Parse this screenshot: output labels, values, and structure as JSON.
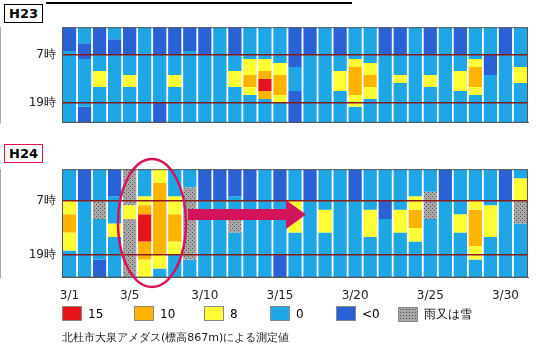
{
  "chart_data": [
    {
      "type": "heatmap",
      "title": "H23",
      "categories": [
        "3/1",
        null,
        null,
        null,
        "3/5",
        null,
        null,
        null,
        null,
        "3/10",
        null,
        null,
        null,
        null,
        "3/15",
        null,
        null,
        null,
        null,
        "3/20",
        null,
        null,
        null,
        null,
        "3/25",
        null,
        null,
        null,
        null,
        "3/30",
        null
      ],
      "ylim": [
        0,
        24
      ],
      "yticks": [
        {
          "value": 7,
          "label": "7時"
        },
        {
          "value": 19,
          "label": "19時"
        }
      ],
      "grid": true,
      "tick_labels": "y",
      "cells": [
        [
          [
            0,
            6,
            4
          ],
          [
            6,
            24,
            3
          ]
        ],
        [
          [
            0,
            4,
            3
          ],
          [
            4,
            8,
            4
          ],
          [
            8,
            20,
            3
          ],
          [
            20,
            24,
            4
          ]
        ],
        [
          [
            0,
            7,
            4
          ],
          [
            7,
            11,
            3
          ],
          [
            11,
            15,
            2
          ],
          [
            15,
            24,
            3
          ]
        ],
        [
          [
            0,
            3,
            3
          ],
          [
            3,
            7,
            4
          ],
          [
            7,
            24,
            3
          ]
        ],
        [
          [
            0,
            7,
            4
          ],
          [
            7,
            12,
            3
          ],
          [
            12,
            15,
            2
          ],
          [
            15,
            24,
            3
          ]
        ],
        [
          [
            0,
            24,
            3
          ]
        ],
        [
          [
            0,
            7,
            4
          ],
          [
            7,
            19,
            3
          ],
          [
            19,
            24,
            4
          ]
        ],
        [
          [
            0,
            7,
            4
          ],
          [
            7,
            12,
            3
          ],
          [
            12,
            15,
            2
          ],
          [
            15,
            24,
            3
          ]
        ],
        [
          [
            0,
            6,
            4
          ],
          [
            6,
            24,
            3
          ]
        ],
        [
          [
            0,
            7,
            4
          ],
          [
            7,
            24,
            3
          ]
        ],
        [
          [
            0,
            24,
            3
          ]
        ],
        [
          [
            0,
            7,
            4
          ],
          [
            7,
            11,
            3
          ],
          [
            11,
            15,
            2
          ],
          [
            15,
            24,
            3
          ]
        ],
        [
          [
            0,
            8,
            3
          ],
          [
            8,
            12,
            2
          ],
          [
            12,
            15,
            1
          ],
          [
            15,
            17,
            2
          ],
          [
            17,
            24,
            3
          ]
        ],
        [
          [
            0,
            8,
            3
          ],
          [
            8,
            11,
            2
          ],
          [
            11,
            13,
            1
          ],
          [
            13,
            16,
            0
          ],
          [
            16,
            18,
            1
          ],
          [
            18,
            24,
            3
          ]
        ],
        [
          [
            0,
            9,
            3
          ],
          [
            9,
            12,
            2
          ],
          [
            12,
            17,
            1
          ],
          [
            17,
            19,
            2
          ],
          [
            19,
            24,
            3
          ]
        ],
        [
          [
            0,
            10,
            4
          ],
          [
            10,
            16,
            3
          ],
          [
            16,
            24,
            4
          ]
        ],
        [
          [
            0,
            7,
            4
          ],
          [
            7,
            24,
            3
          ]
        ],
        [
          [
            0,
            24,
            3
          ]
        ],
        [
          [
            0,
            7,
            4
          ],
          [
            7,
            11,
            3
          ],
          [
            11,
            16,
            2
          ],
          [
            16,
            24,
            3
          ]
        ],
        [
          [
            0,
            8,
            3
          ],
          [
            8,
            10,
            2
          ],
          [
            10,
            17,
            1
          ],
          [
            17,
            20,
            2
          ],
          [
            20,
            24,
            3
          ]
        ],
        [
          [
            0,
            9,
            3
          ],
          [
            9,
            12,
            2
          ],
          [
            12,
            15,
            1
          ],
          [
            15,
            18,
            2
          ],
          [
            18,
            24,
            3
          ]
        ],
        [
          [
            0,
            7,
            4
          ],
          [
            7,
            24,
            3
          ]
        ],
        [
          [
            0,
            7,
            4
          ],
          [
            7,
            12,
            3
          ],
          [
            12,
            14,
            2
          ],
          [
            14,
            24,
            3
          ]
        ],
        [
          [
            0,
            24,
            3
          ]
        ],
        [
          [
            0,
            7,
            4
          ],
          [
            7,
            12,
            3
          ],
          [
            12,
            15,
            2
          ],
          [
            15,
            24,
            3
          ]
        ],
        [
          [
            0,
            24,
            3
          ]
        ],
        [
          [
            0,
            7,
            4
          ],
          [
            7,
            11,
            3
          ],
          [
            11,
            16,
            2
          ],
          [
            16,
            24,
            3
          ]
        ],
        [
          [
            0,
            8,
            3
          ],
          [
            8,
            10,
            2
          ],
          [
            10,
            15,
            1
          ],
          [
            15,
            17,
            2
          ],
          [
            17,
            24,
            3
          ]
        ],
        [
          [
            0,
            7,
            3
          ],
          [
            7,
            12,
            4
          ],
          [
            12,
            24,
            3
          ]
        ],
        [
          [
            0,
            7,
            4
          ],
          [
            7,
            24,
            3
          ]
        ],
        [
          [
            0,
            10,
            3
          ],
          [
            10,
            14,
            2
          ],
          [
            14,
            24,
            3
          ]
        ]
      ]
    },
    {
      "type": "heatmap",
      "title": "H24",
      "categories": [
        "3/1",
        null,
        null,
        null,
        "3/5",
        null,
        null,
        null,
        null,
        "3/10",
        null,
        null,
        null,
        null,
        "3/15",
        null,
        null,
        null,
        null,
        "3/20",
        null,
        null,
        null,
        null,
        "3/25",
        null,
        null,
        null,
        null,
        "3/30",
        null
      ],
      "ylim": [
        0,
        24
      ],
      "yticks": [
        {
          "value": 7,
          "label": "7時"
        },
        {
          "value": 19,
          "label": "19時"
        }
      ],
      "grid": true,
      "tick_labels": true,
      "cells": [
        [
          [
            0,
            7,
            3
          ],
          [
            7,
            10,
            2
          ],
          [
            10,
            14,
            1
          ],
          [
            14,
            18,
            2
          ],
          [
            18,
            24,
            3
          ]
        ],
        [
          [
            0,
            7,
            4
          ],
          [
            7,
            24,
            3
          ]
        ],
        [
          [
            0,
            7,
            3
          ],
          [
            7,
            11,
            5
          ],
          [
            11,
            20,
            3
          ],
          [
            20,
            24,
            4
          ]
        ],
        [
          [
            0,
            6,
            4
          ],
          [
            6,
            12,
            3
          ],
          [
            12,
            15,
            2
          ],
          [
            15,
            24,
            3
          ]
        ],
        [
          [
            0,
            8,
            5
          ],
          [
            8,
            11,
            2
          ],
          [
            11,
            24,
            5
          ]
        ],
        [
          [
            0,
            6,
            3
          ],
          [
            6,
            8,
            2
          ],
          [
            8,
            10,
            1
          ],
          [
            10,
            16,
            0
          ],
          [
            16,
            20,
            1
          ],
          [
            20,
            24,
            2
          ]
        ],
        [
          [
            0,
            3,
            2
          ],
          [
            3,
            19,
            1
          ],
          [
            19,
            22,
            2
          ],
          [
            22,
            24,
            3
          ]
        ],
        [
          [
            0,
            6,
            3
          ],
          [
            6,
            10,
            2
          ],
          [
            10,
            16,
            1
          ],
          [
            16,
            19,
            2
          ],
          [
            19,
            24,
            3
          ]
        ],
        [
          [
            0,
            4,
            3
          ],
          [
            4,
            20,
            5
          ],
          [
            20,
            24,
            3
          ]
        ],
        [
          [
            0,
            7,
            4
          ],
          [
            7,
            24,
            3
          ]
        ],
        [
          [
            0,
            7,
            4
          ],
          [
            7,
            24,
            3
          ]
        ],
        [
          [
            0,
            6,
            4
          ],
          [
            6,
            10,
            3
          ],
          [
            10,
            14,
            5
          ],
          [
            14,
            24,
            3
          ]
        ],
        [
          [
            0,
            7,
            4
          ],
          [
            7,
            24,
            3
          ]
        ],
        [
          [
            0,
            24,
            3
          ]
        ],
        [
          [
            0,
            7,
            4
          ],
          [
            7,
            19,
            3
          ],
          [
            19,
            24,
            4
          ]
        ],
        [
          [
            0,
            7,
            3
          ],
          [
            7,
            14,
            2
          ],
          [
            14,
            24,
            3
          ]
        ],
        [
          [
            0,
            7,
            4
          ],
          [
            7,
            24,
            3
          ]
        ],
        [
          [
            0,
            9,
            3
          ],
          [
            9,
            14,
            2
          ],
          [
            14,
            24,
            3
          ]
        ],
        [
          [
            0,
            24,
            3
          ]
        ],
        [
          [
            0,
            7,
            4
          ],
          [
            7,
            24,
            3
          ]
        ],
        [
          [
            0,
            9,
            3
          ],
          [
            9,
            15,
            2
          ],
          [
            15,
            24,
            3
          ]
        ],
        [
          [
            0,
            7,
            3
          ],
          [
            7,
            11,
            4
          ],
          [
            11,
            24,
            3
          ]
        ],
        [
          [
            0,
            9,
            3
          ],
          [
            9,
            14,
            2
          ],
          [
            14,
            24,
            3
          ]
        ],
        [
          [
            0,
            6,
            3
          ],
          [
            6,
            9,
            2
          ],
          [
            9,
            13,
            1
          ],
          [
            13,
            16,
            2
          ],
          [
            16,
            24,
            3
          ]
        ],
        [
          [
            0,
            5,
            3
          ],
          [
            5,
            11,
            5
          ],
          [
            11,
            24,
            3
          ]
        ],
        [
          [
            0,
            7,
            4
          ],
          [
            7,
            24,
            3
          ]
        ],
        [
          [
            0,
            10,
            3
          ],
          [
            10,
            14,
            2
          ],
          [
            14,
            24,
            3
          ]
        ],
        [
          [
            0,
            7,
            3
          ],
          [
            7,
            9,
            2
          ],
          [
            9,
            17,
            1
          ],
          [
            17,
            20,
            2
          ],
          [
            20,
            24,
            3
          ]
        ],
        [
          [
            0,
            8,
            3
          ],
          [
            8,
            15,
            2
          ],
          [
            15,
            24,
            3
          ]
        ],
        [
          [
            0,
            7,
            4
          ],
          [
            7,
            24,
            3
          ]
        ],
        [
          [
            0,
            2,
            3
          ],
          [
            2,
            7,
            2
          ],
          [
            7,
            12,
            5
          ],
          [
            12,
            24,
            3
          ]
        ]
      ]
    }
  ],
  "color_classes": [
    {
      "value": 15,
      "color": "#e8141c"
    },
    {
      "value": 10,
      "color": "#ffb400"
    },
    {
      "value": 8,
      "color": "#ffff33"
    },
    {
      "value": 0,
      "color": "#1ea6e6"
    },
    {
      "label": "<0",
      "color": "#2a62d6"
    },
    {
      "label": "雨又は雪",
      "color": "#a8a8a8",
      "marker": "hatch"
    }
  ],
  "note": "北杜市大泉アメダス(標高867m)による測定値"
}
